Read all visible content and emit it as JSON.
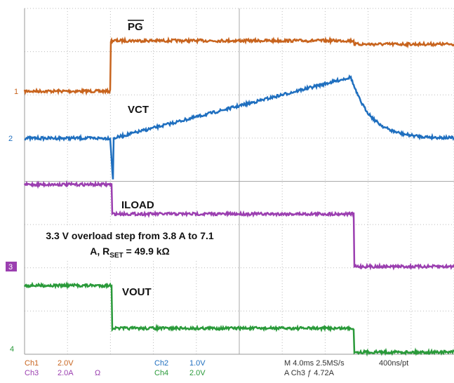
{
  "traces": {
    "pg": "PG",
    "vct": "VCT",
    "iload": "ILOAD",
    "vout": "VOUT"
  },
  "annotation": {
    "line1": "3.3 V overload step from 3.8 A to 7.1",
    "line2_start": "A, R",
    "line2_sub": "SET",
    "line2_end": " = 49.9 kΩ"
  },
  "markers": [
    "1",
    "2",
    "3",
    "4"
  ],
  "status": {
    "ch1": "Ch1",
    "ch1_scale": "2.0V",
    "ch3": "Ch3",
    "ch3_scale": "2.0A",
    "ch3_unit": "Ω",
    "ch2": "Ch2",
    "ch2_scale": "1.0V",
    "ch4": "Ch4",
    "ch4_scale": "2.0V",
    "timebase": "M 4.0ms 2.5MS/s",
    "trigger": "A Ch3 ƒ 4.72A",
    "resolution": "400ns/pt"
  }
}
